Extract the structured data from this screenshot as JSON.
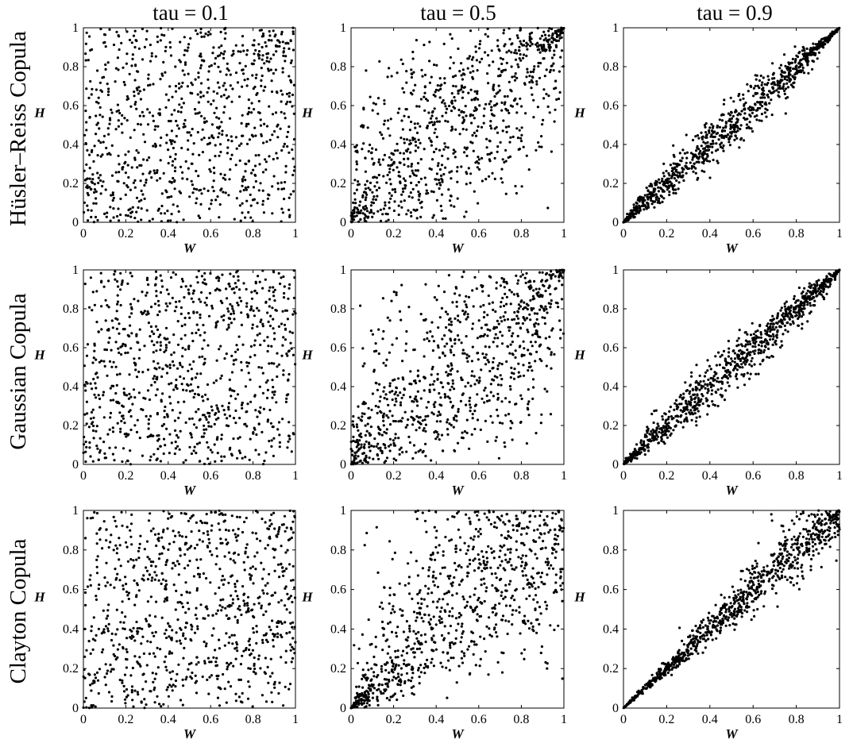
{
  "figure": {
    "column_titles": [
      "tau = 0.1",
      "tau = 0.5",
      "tau = 0.9"
    ],
    "row_labels": [
      "Hüsler–Reiss Copula",
      "Gaussian Copula",
      "Clayton Copula"
    ],
    "colors": {
      "points": "#000000",
      "axes": "#000000",
      "background": "#ffffff"
    }
  },
  "chart_data": [
    {
      "type": "scatter",
      "row": "Hüsler–Reiss Copula",
      "column": "tau = 0.1",
      "tau": 0.1,
      "copula": "husler-reiss",
      "n_points": 900,
      "xlabel": "W",
      "ylabel": "H",
      "xlim": [
        0,
        1
      ],
      "ylim": [
        0,
        1
      ],
      "xticks": [
        "0",
        "0.2",
        "0.4",
        "0.6",
        "0.8",
        "1"
      ],
      "yticks": [
        "0",
        "0.2",
        "0.4",
        "0.6",
        "0.8",
        "1"
      ],
      "grid": false,
      "seed": 11
    },
    {
      "type": "scatter",
      "row": "Hüsler–Reiss Copula",
      "column": "tau = 0.5",
      "tau": 0.5,
      "copula": "husler-reiss",
      "n_points": 900,
      "xlabel": "W",
      "ylabel": "H",
      "xlim": [
        0,
        1
      ],
      "ylim": [
        0,
        1
      ],
      "xticks": [
        "0",
        "0.2",
        "0.4",
        "0.6",
        "0.8",
        "1"
      ],
      "yticks": [
        "0",
        "0.2",
        "0.4",
        "0.6",
        "0.8",
        "1"
      ],
      "grid": false,
      "seed": 12
    },
    {
      "type": "scatter",
      "row": "Hüsler–Reiss Copula",
      "column": "tau = 0.9",
      "tau": 0.9,
      "copula": "husler-reiss",
      "n_points": 900,
      "xlabel": "W",
      "ylabel": "H",
      "xlim": [
        0,
        1
      ],
      "ylim": [
        0,
        1
      ],
      "xticks": [
        "0",
        "0.2",
        "0.4",
        "0.6",
        "0.8",
        "1"
      ],
      "yticks": [
        "0",
        "0.2",
        "0.4",
        "0.6",
        "0.8",
        "1"
      ],
      "grid": false,
      "seed": 13
    },
    {
      "type": "scatter",
      "row": "Gaussian Copula",
      "column": "tau = 0.1",
      "tau": 0.1,
      "copula": "gaussian",
      "n_points": 900,
      "xlabel": "W",
      "ylabel": "H",
      "xlim": [
        0,
        1
      ],
      "ylim": [
        0,
        1
      ],
      "xticks": [
        "0",
        "0.2",
        "0.4",
        "0.6",
        "0.8",
        "1"
      ],
      "yticks": [
        "0",
        "0.2",
        "0.4",
        "0.6",
        "0.8",
        "1"
      ],
      "grid": false,
      "seed": 21
    },
    {
      "type": "scatter",
      "row": "Gaussian Copula",
      "column": "tau = 0.5",
      "tau": 0.5,
      "copula": "gaussian",
      "n_points": 900,
      "xlabel": "W",
      "ylabel": "H",
      "xlim": [
        0,
        1
      ],
      "ylim": [
        0,
        1
      ],
      "xticks": [
        "0",
        "0.2",
        "0.4",
        "0.6",
        "0.8",
        "1"
      ],
      "yticks": [
        "0",
        "0.2",
        "0.4",
        "0.6",
        "0.8",
        "1"
      ],
      "grid": false,
      "seed": 22
    },
    {
      "type": "scatter",
      "row": "Gaussian Copula",
      "column": "tau = 0.9",
      "tau": 0.9,
      "copula": "gaussian",
      "n_points": 900,
      "xlabel": "W",
      "ylabel": "H",
      "xlim": [
        0,
        1
      ],
      "ylim": [
        0,
        1
      ],
      "xticks": [
        "0",
        "0.2",
        "0.4",
        "0.6",
        "0.8",
        "1"
      ],
      "yticks": [
        "0",
        "0.2",
        "0.4",
        "0.6",
        "0.8",
        "1"
      ],
      "grid": false,
      "seed": 23
    },
    {
      "type": "scatter",
      "row": "Clayton Copula",
      "column": "tau = 0.1",
      "tau": 0.1,
      "copula": "clayton",
      "n_points": 900,
      "xlabel": "W",
      "ylabel": "H",
      "xlim": [
        0,
        1
      ],
      "ylim": [
        0,
        1
      ],
      "xticks": [
        "0",
        "0.2",
        "0.4",
        "0.6",
        "0.8",
        "1"
      ],
      "yticks": [
        "0",
        "0.2",
        "0.4",
        "0.6",
        "0.8",
        "1"
      ],
      "grid": false,
      "seed": 31
    },
    {
      "type": "scatter",
      "row": "Clayton Copula",
      "column": "tau = 0.5",
      "tau": 0.5,
      "copula": "clayton",
      "n_points": 900,
      "xlabel": "W",
      "ylabel": "H",
      "xlim": [
        0,
        1
      ],
      "ylim": [
        0,
        1
      ],
      "xticks": [
        "0",
        "0.2",
        "0.4",
        "0.6",
        "0.8",
        "1"
      ],
      "yticks": [
        "0",
        "0.2",
        "0.4",
        "0.6",
        "0.8",
        "1"
      ],
      "grid": false,
      "seed": 32
    },
    {
      "type": "scatter",
      "row": "Clayton Copula",
      "column": "tau = 0.9",
      "tau": 0.9,
      "copula": "clayton",
      "n_points": 900,
      "xlabel": "W",
      "ylabel": "H",
      "xlim": [
        0,
        1
      ],
      "ylim": [
        0,
        1
      ],
      "xticks": [
        "0",
        "0.2",
        "0.4",
        "0.6",
        "0.8",
        "1"
      ],
      "yticks": [
        "0",
        "0.2",
        "0.4",
        "0.6",
        "0.8",
        "1"
      ],
      "grid": false,
      "seed": 33
    }
  ]
}
